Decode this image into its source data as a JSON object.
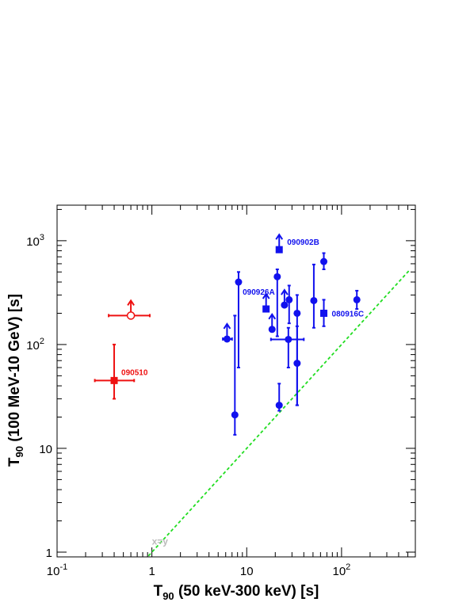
{
  "chart_data": {
    "type": "scatter",
    "x_scale": "log",
    "y_scale": "log",
    "xlim": [
      0.1,
      600
    ],
    "ylim": [
      0.9,
      2200
    ],
    "xlabel_main": "T",
    "xlabel_sub": "90",
    "xlabel_rest": " (50 keV-300 keV) [s]",
    "ylabel_main": "T",
    "ylabel_sub": "90",
    "ylabel_rest": " (100 MeV-10 GeV) [s]",
    "x_ticks": [
      {
        "value": 0.1,
        "base": "10",
        "exp": "-1"
      },
      {
        "value": 1,
        "base": "1",
        "exp": ""
      },
      {
        "value": 10,
        "base": "10",
        "exp": ""
      },
      {
        "value": 100,
        "base": "10",
        "exp": "2"
      }
    ],
    "y_ticks": [
      {
        "value": 1,
        "base": "1",
        "exp": ""
      },
      {
        "value": 10,
        "base": "10",
        "exp": ""
      },
      {
        "value": 100,
        "base": "10",
        "exp": "2"
      },
      {
        "value": 1000,
        "base": "10",
        "exp": "3"
      }
    ],
    "reference_line": {
      "label": "x=y",
      "color": "#22dd22"
    },
    "series": [
      {
        "color": "#ee1111",
        "points": [
          {
            "x": 0.4,
            "y": 45,
            "xerr": [
              0.25,
              0.65
            ],
            "yerr": [
              30,
              100
            ],
            "marker": "square",
            "label": "090510"
          },
          {
            "x": 0.6,
            "y": 190,
            "xerr": [
              0.35,
              0.95
            ],
            "yerr": null,
            "marker": "open-circle",
            "lower_limit": true
          }
        ]
      },
      {
        "color": "#1111ee",
        "points": [
          {
            "x": 6.2,
            "y": 113,
            "xerr": [
              5.6,
              7.0
            ],
            "yerr": null,
            "marker": "circle",
            "lower_limit": true
          },
          {
            "x": 7.5,
            "y": 21,
            "xerr": null,
            "yerr": [
              13.5,
              190
            ],
            "marker": "circle"
          },
          {
            "x": 8.2,
            "y": 400,
            "xerr": null,
            "yerr": [
              60,
              500
            ],
            "marker": "circle"
          },
          {
            "x": 18.5,
            "y": 140,
            "xerr": null,
            "yerr": null,
            "marker": "circle",
            "lower_limit": true
          },
          {
            "x": 21,
            "y": 450,
            "xerr": null,
            "yerr": [
              120,
              530
            ],
            "marker": "circle"
          },
          {
            "x": 22,
            "y": 26,
            "xerr": null,
            "yerr": [
              23,
              42
            ],
            "marker": "circle"
          },
          {
            "x": 22,
            "y": 820,
            "xerr": null,
            "yerr": null,
            "marker": "square",
            "lower_limit": true,
            "label": "090902B"
          },
          {
            "x": 25,
            "y": 240,
            "xerr": null,
            "yerr": null,
            "marker": "circle",
            "lower_limit": true
          },
          {
            "x": 16,
            "y": 220,
            "xerr": null,
            "yerr": null,
            "marker": "square",
            "lower_limit": true,
            "label": "090926A"
          },
          {
            "x": 28,
            "y": 270,
            "xerr": null,
            "yerr": [
              160,
              370
            ],
            "marker": "circle"
          },
          {
            "x": 27.5,
            "y": 112,
            "xerr": [
              18,
              40
            ],
            "yerr": [
              60,
              145
            ],
            "marker": "circle"
          },
          {
            "x": 34,
            "y": 200,
            "xerr": null,
            "yerr": [
              26,
              300
            ],
            "marker": "circle"
          },
          {
            "x": 34,
            "y": 66,
            "xerr": null,
            "yerr": [
              26,
              150
            ],
            "marker": "circle"
          },
          {
            "x": 51,
            "y": 265,
            "xerr": null,
            "yerr": [
              145,
              590
            ],
            "marker": "circle"
          },
          {
            "x": 65,
            "y": 630,
            "xerr": null,
            "yerr": [
              530,
              760
            ],
            "marker": "circle"
          },
          {
            "x": 65,
            "y": 200,
            "xerr": null,
            "yerr": [
              150,
              270
            ],
            "marker": "square",
            "label": "080916C"
          },
          {
            "x": 145,
            "y": 270,
            "xerr": null,
            "yerr": [
              220,
              330
            ],
            "marker": "circle"
          }
        ]
      }
    ]
  }
}
